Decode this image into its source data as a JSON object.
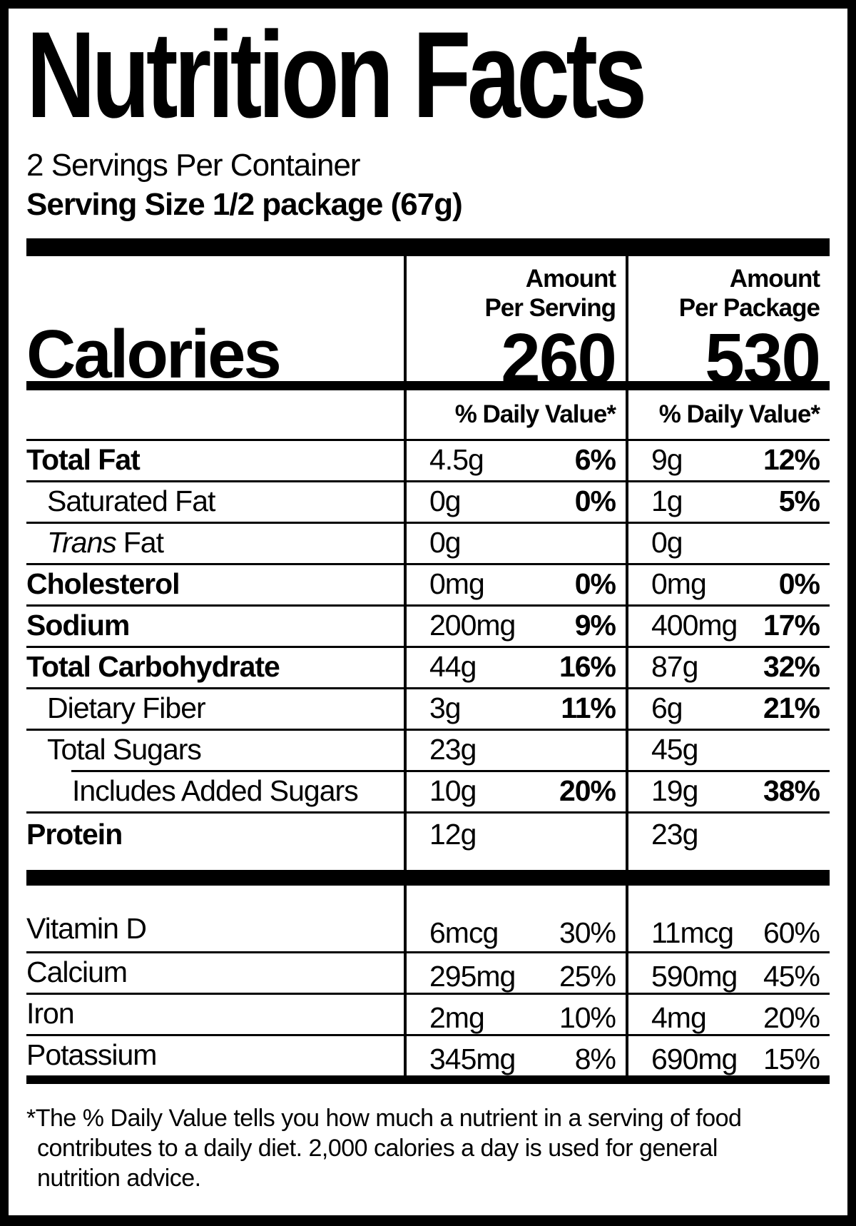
{
  "header": {
    "title": "Nutrition Facts",
    "servings_per_container": "2 Servings Per Container",
    "serving_size": "Serving Size 1/2 package (67g)"
  },
  "calories": {
    "label": "Calories",
    "serving": {
      "header_line1": "Amount",
      "header_line2": "Per Serving",
      "value": "260"
    },
    "package": {
      "header_line1": "Amount",
      "header_line2": "Per Package",
      "value": "530"
    }
  },
  "daily_value_header": {
    "serving": "% Daily Value*",
    "package": "% Daily Value*"
  },
  "nutrients": [
    {
      "name": "Total Fat",
      "serving_amount": "4.5g",
      "serving_dv": "6%",
      "package_amount": "9g",
      "package_dv": "12%"
    },
    {
      "name": "Saturated Fat",
      "serving_amount": "0g",
      "serving_dv": "0%",
      "package_amount": "1g",
      "package_dv": "5%"
    },
    {
      "name_italic": "Trans",
      "name_rest": "Fat",
      "serving_amount": "0g",
      "serving_dv": "",
      "package_amount": "0g",
      "package_dv": ""
    },
    {
      "name": "Cholesterol",
      "serving_amount": "0mg",
      "serving_dv": "0%",
      "package_amount": "0mg",
      "package_dv": "0%"
    },
    {
      "name": "Sodium",
      "serving_amount": "200mg",
      "serving_dv": "9%",
      "package_amount": "400mg",
      "package_dv": "17%"
    },
    {
      "name": "Total Carbohydrate",
      "serving_amount": "44g",
      "serving_dv": "16%",
      "package_amount": "87g",
      "package_dv": "32%"
    },
    {
      "name": "Dietary Fiber",
      "serving_amount": "3g",
      "serving_dv": "11%",
      "package_amount": "6g",
      "package_dv": "21%"
    },
    {
      "name": "Total Sugars",
      "serving_amount": "23g",
      "serving_dv": "",
      "package_amount": "45g",
      "package_dv": ""
    },
    {
      "name": "Includes Added Sugars",
      "serving_amount": "10g",
      "serving_dv": "20%",
      "package_amount": "19g",
      "package_dv": "38%"
    },
    {
      "name": "Protein",
      "serving_amount": "12g",
      "serving_dv": "",
      "package_amount": "23g",
      "package_dv": ""
    }
  ],
  "vitamins": [
    {
      "name": "Vitamin D",
      "serving_amount": "6mcg",
      "serving_dv": "30%",
      "package_amount": "11mcg",
      "package_dv": "60%"
    },
    {
      "name": "Calcium",
      "serving_amount": "295mg",
      "serving_dv": "25%",
      "package_amount": "590mg",
      "package_dv": "45%"
    },
    {
      "name": "Iron",
      "serving_amount": "2mg",
      "serving_dv": "10%",
      "package_amount": "4mg",
      "package_dv": "20%"
    },
    {
      "name": "Potassium",
      "serving_amount": "345mg",
      "serving_dv": "8%",
      "package_amount": "690mg",
      "package_dv": "15%"
    }
  ],
  "footnote": {
    "line1": "*The % Daily Value tells you how much a nutrient in a  serving of food",
    "line2": "contributes to a daily diet. 2,000 calories  a day is used for general",
    "line3": "nutrition advice."
  }
}
